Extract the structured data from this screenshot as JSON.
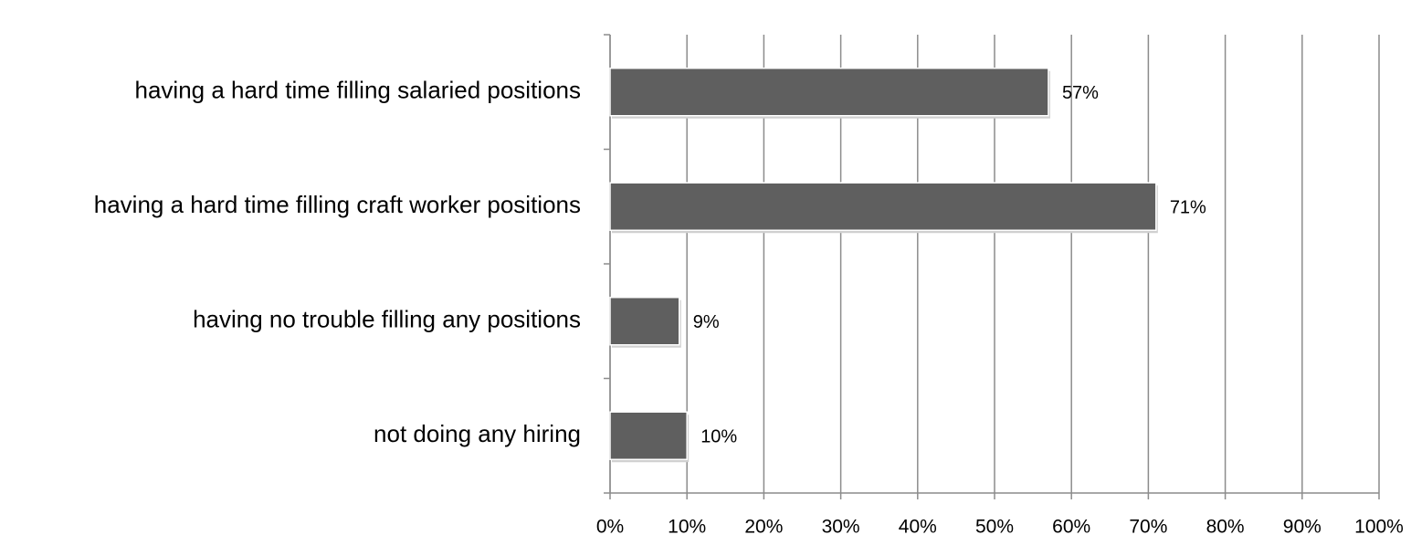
{
  "chart_data": {
    "type": "bar",
    "orientation": "horizontal",
    "categories": [
      "having a hard time filling salaried positions",
      "having a hard time filling craft worker positions",
      "having no trouble filling any positions",
      "not doing any hiring"
    ],
    "values": [
      57,
      71,
      9,
      10
    ],
    "value_labels": [
      "57%",
      "71%",
      "9%",
      "10%"
    ],
    "color": "#5f5f5f",
    "xlim": [
      0,
      100
    ],
    "xticks": [
      {
        "value": 0,
        "label": "0%"
      },
      {
        "value": 10,
        "label": "10%"
      },
      {
        "value": 20,
        "label": "20%"
      },
      {
        "value": 30,
        "label": "30%"
      },
      {
        "value": 40,
        "label": "40%"
      },
      {
        "value": 50,
        "label": "50%"
      },
      {
        "value": 60,
        "label": "60%"
      },
      {
        "value": 70,
        "label": "70%"
      },
      {
        "value": 80,
        "label": "80%"
      },
      {
        "value": 90,
        "label": "90%"
      },
      {
        "value": 100,
        "label": "100%"
      }
    ],
    "grid": true
  }
}
